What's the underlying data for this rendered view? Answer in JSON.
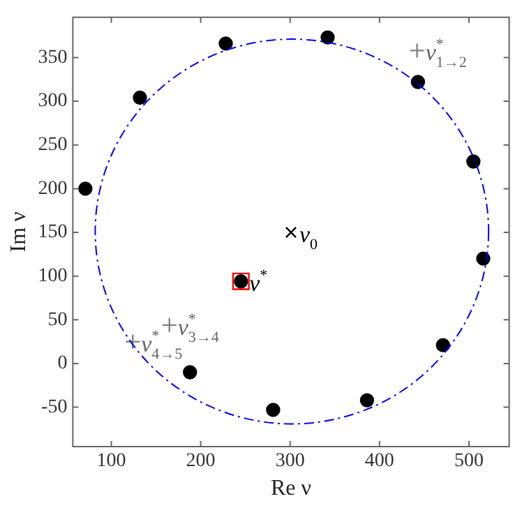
{
  "chart_data": {
    "type": "scatter",
    "xlabel": "Re ν",
    "ylabel": "Im ν",
    "xlim": [
      57,
      545
    ],
    "ylim": [
      -95,
      396
    ],
    "xticks": [
      100,
      200,
      300,
      400,
      500
    ],
    "yticks": [
      -50,
      0,
      50,
      100,
      150,
      200,
      250,
      300,
      350
    ],
    "grid": false,
    "legend": false,
    "series": [
      {
        "type": "scatter",
        "color": "#000000",
        "marker": "circle",
        "x": [
          71,
          132,
          228,
          342,
          443,
          505,
          516,
          471,
          386,
          281,
          188,
          245
        ],
        "values": [
          200,
          304,
          366,
          373,
          322,
          231,
          120,
          21,
          -42,
          -53,
          -10,
          94
        ]
      },
      {
        "type": "scatter",
        "color": "#808080",
        "marker": "cross",
        "x": [
          442,
          165,
          124
        ],
        "values": [
          358,
          44,
          25
        ]
      },
      {
        "type": "scatter",
        "color": "#ff0000",
        "marker": "square",
        "x": [
          245
        ],
        "values": [
          94
        ]
      },
      {
        "type": "scatter",
        "color": "#000000",
        "marker": "x",
        "x": [
          301
        ],
        "values": [
          150
        ]
      }
    ],
    "annotations": [
      {
        "text": "ν$^{*}$$_{1→2}$",
        "x": 442,
        "y": 358
      },
      {
        "text": "ν$^{*}$$_{3→4}$",
        "x": 165,
        "y": 44
      },
      {
        "text": "ν$^{*}$$_{4→5}$",
        "x": 124,
        "y": 25
      },
      {
        "text": "ν$^{*}$",
        "x": 245,
        "y": 94
      },
      {
        "text": "ν$_{0}$",
        "x": 301,
        "y": 150
      }
    ]
  }
}
